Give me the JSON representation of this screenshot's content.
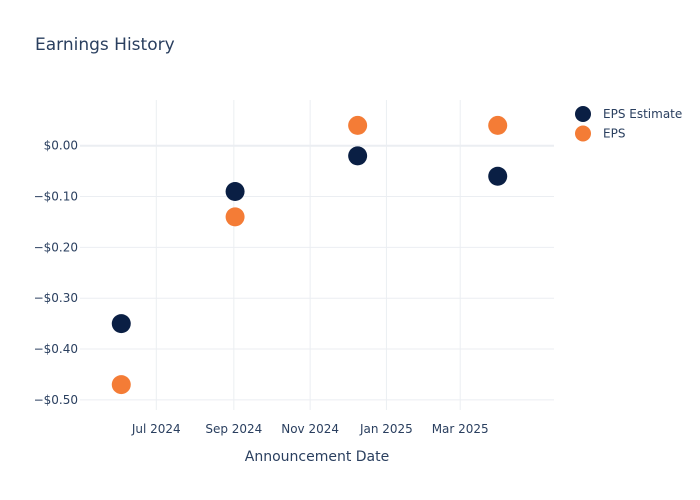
{
  "chart_data": {
    "type": "scatter",
    "title": "Earnings History",
    "xlabel": "Announcement Date",
    "ylabel": "",
    "x_ticks": [
      {
        "date": "2024-07-01",
        "label": "Jul 2024"
      },
      {
        "date": "2024-09-01",
        "label": "Sep 2024"
      },
      {
        "date": "2024-11-01",
        "label": "Nov 2024"
      },
      {
        "date": "2025-01-01",
        "label": "Jan 2025"
      },
      {
        "date": "2025-03-01",
        "label": "Mar 2025"
      }
    ],
    "y_ticks": [
      {
        "value": 0,
        "label": "$0.00"
      },
      {
        "value": -0.1,
        "label": "−$0.10"
      },
      {
        "value": -0.2,
        "label": "−$0.20"
      },
      {
        "value": -0.3,
        "label": "−$0.30"
      },
      {
        "value": -0.4,
        "label": "−$0.40"
      },
      {
        "value": -0.5,
        "label": "−$0.50"
      }
    ],
    "xlim": [
      "2024-05-01",
      "2025-05-15"
    ],
    "ylim": [
      -0.52,
      0.09
    ],
    "grid": true,
    "legend_position": "top-right",
    "series": [
      {
        "name": "EPS Estimate",
        "color": "#0a1f44",
        "points": [
          {
            "x": "2024-06-03",
            "y": -0.35
          },
          {
            "x": "2024-09-02",
            "y": -0.09
          },
          {
            "x": "2024-12-09",
            "y": -0.02
          },
          {
            "x": "2025-03-31",
            "y": -0.06
          }
        ]
      },
      {
        "name": "EPS",
        "color": "#f47c36",
        "points": [
          {
            "x": "2024-06-03",
            "y": -0.47
          },
          {
            "x": "2024-09-02",
            "y": -0.14
          },
          {
            "x": "2024-12-09",
            "y": 0.04
          },
          {
            "x": "2025-03-31",
            "y": 0.04
          }
        ]
      }
    ]
  }
}
